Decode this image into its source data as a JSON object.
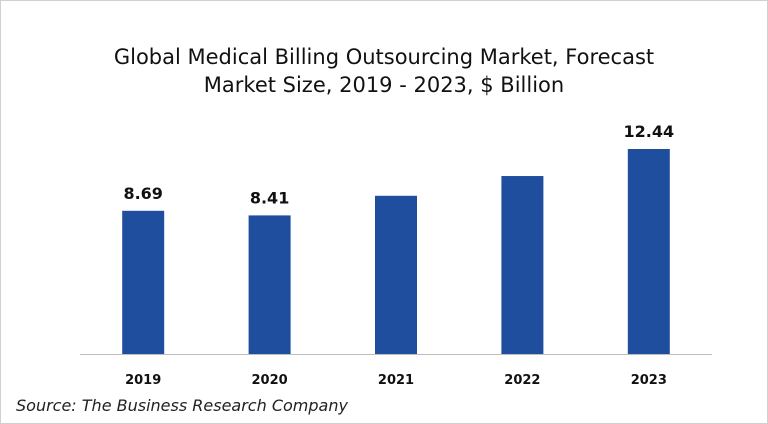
{
  "chart_data": {
    "type": "bar",
    "title_line1": "Global Medical Billing Outsourcing Market, Forecast",
    "title_line2": "Market Size, 2019 - 2023, $ Billion",
    "categories": [
      "2019",
      "2020",
      "2021",
      "2022",
      "2023"
    ],
    "values": [
      8.69,
      8.41,
      9.6,
      10.8,
      12.44
    ],
    "data_labels": [
      "8.69",
      "8.41",
      "",
      "",
      "12.44"
    ],
    "xlabel": "",
    "ylabel": "",
    "ylim": [
      0,
      12.44
    ],
    "grid": false,
    "legend": "none",
    "bar_color": "#1f4e9e"
  },
  "source": "Source: The Business Research Company"
}
